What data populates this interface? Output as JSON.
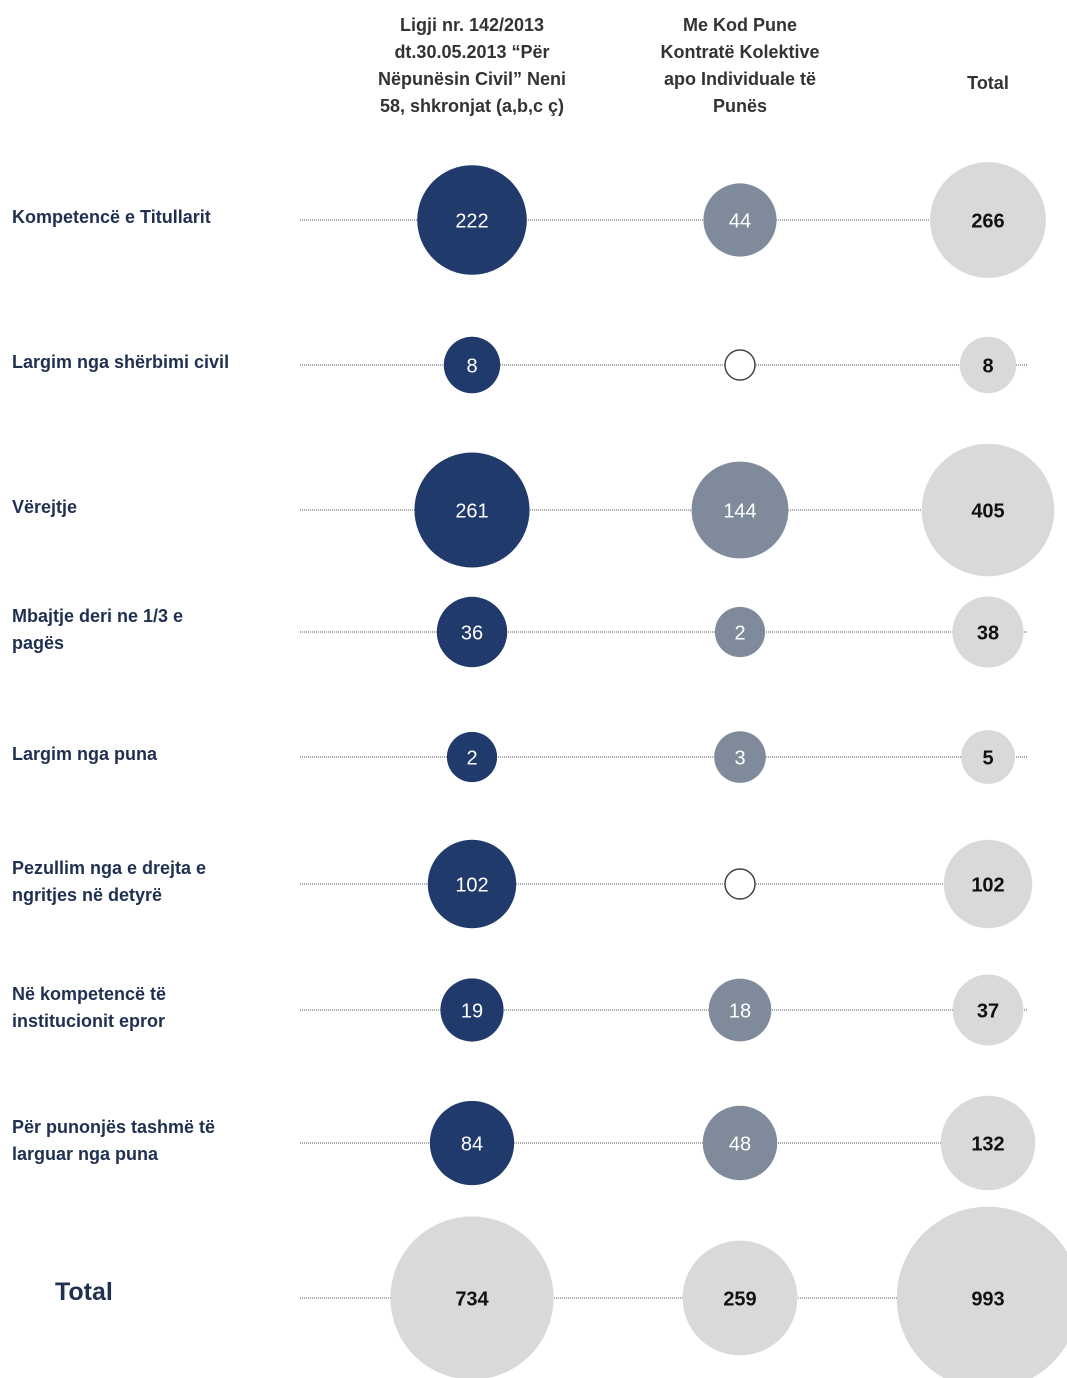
{
  "columns": [
    [
      "Ligji nr. 142/2013",
      "dt.30.05.2013 “Për",
      "Nëpunësin Civil” Neni",
      "58, shkronjat (a,b,c ç)"
    ],
    [
      "Me Kod Pune",
      "Kontratë Kolektive",
      "apo Individuale të",
      "Punës"
    ],
    [
      "Total"
    ]
  ],
  "rows": [
    {
      "label": [
        "Kompetencë e Titullarit"
      ],
      "values": [
        222,
        44,
        266
      ]
    },
    {
      "label": [
        "Largim nga shërbimi civil"
      ],
      "values": [
        8,
        null,
        8
      ]
    },
    {
      "label": [
        "Vërejtje"
      ],
      "values": [
        261,
        144,
        405
      ]
    },
    {
      "label": [
        "Mbajtje deri ne 1/3 e",
        "pagës"
      ],
      "values": [
        36,
        2,
        38
      ]
    },
    {
      "label": [
        "Largim nga puna"
      ],
      "values": [
        2,
        3,
        5
      ]
    },
    {
      "label": [
        "Pezullim nga e drejta e",
        "ngritjes në detyrë"
      ],
      "values": [
        102,
        null,
        102
      ]
    },
    {
      "label": [
        "Në kompetencë të",
        "institucionit epror"
      ],
      "values": [
        19,
        18,
        37
      ]
    },
    {
      "label": [
        "Për punonjës tashmë të",
        "larguar nga puna"
      ],
      "values": [
        84,
        48,
        132
      ]
    }
  ],
  "total": {
    "label": "Total",
    "values": [
      734,
      259,
      993
    ]
  },
  "colors": [
    "#203a6b",
    "#7f8b9b",
    "#d9d9d9"
  ]
}
